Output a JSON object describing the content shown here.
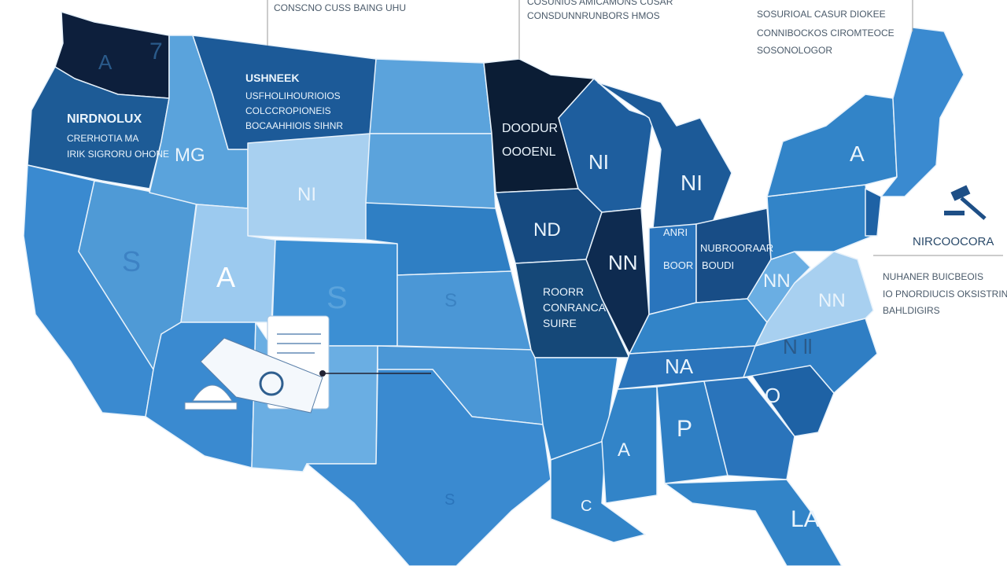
{
  "annotations": [
    {
      "lines": [
        "CONSCNO CUSS BAING UHU"
      ]
    },
    {
      "lines": [
        "COSUNIUS AMICAMONS CUSAR",
        "CONSDUNNRUNBORS HMOS"
      ]
    },
    {
      "lines": [
        "SOSURIOAL CASUR DIOKEE",
        "CONNIBOCKOS CIROMTEOCE",
        "SOSONOLOGOR"
      ]
    },
    {
      "title": "NIRCOOCORA",
      "lines": [
        "NUHANER BUICBEOIS",
        "IO PNORDIUCIS OKSISTRINE",
        "BAHLDIGIRS"
      ]
    }
  ],
  "labels": [
    "A",
    "7",
    "NIRDNOLUX",
    "CRERHOTIA MA",
    "IRIK SIGRORU OHONE",
    "MG",
    "USHNEEK",
    "USFHOLIHOURIOIOS",
    "COLCCROPIONEIS",
    "BOCAAHHIOIS SIHNR",
    "NI",
    "S",
    "A",
    "S",
    "DOODUR",
    "OOOENL",
    "NI",
    "NI",
    "ND",
    "NN",
    "ROORR",
    "CONRANCA",
    "SUIRE",
    "ANRI",
    "BOOR",
    "NUBROORAAR",
    "BOUDI",
    "A",
    "NN",
    "NN",
    "N ll",
    "NA",
    "O",
    "P",
    "A",
    "S",
    "LA",
    "S",
    "C"
  ]
}
